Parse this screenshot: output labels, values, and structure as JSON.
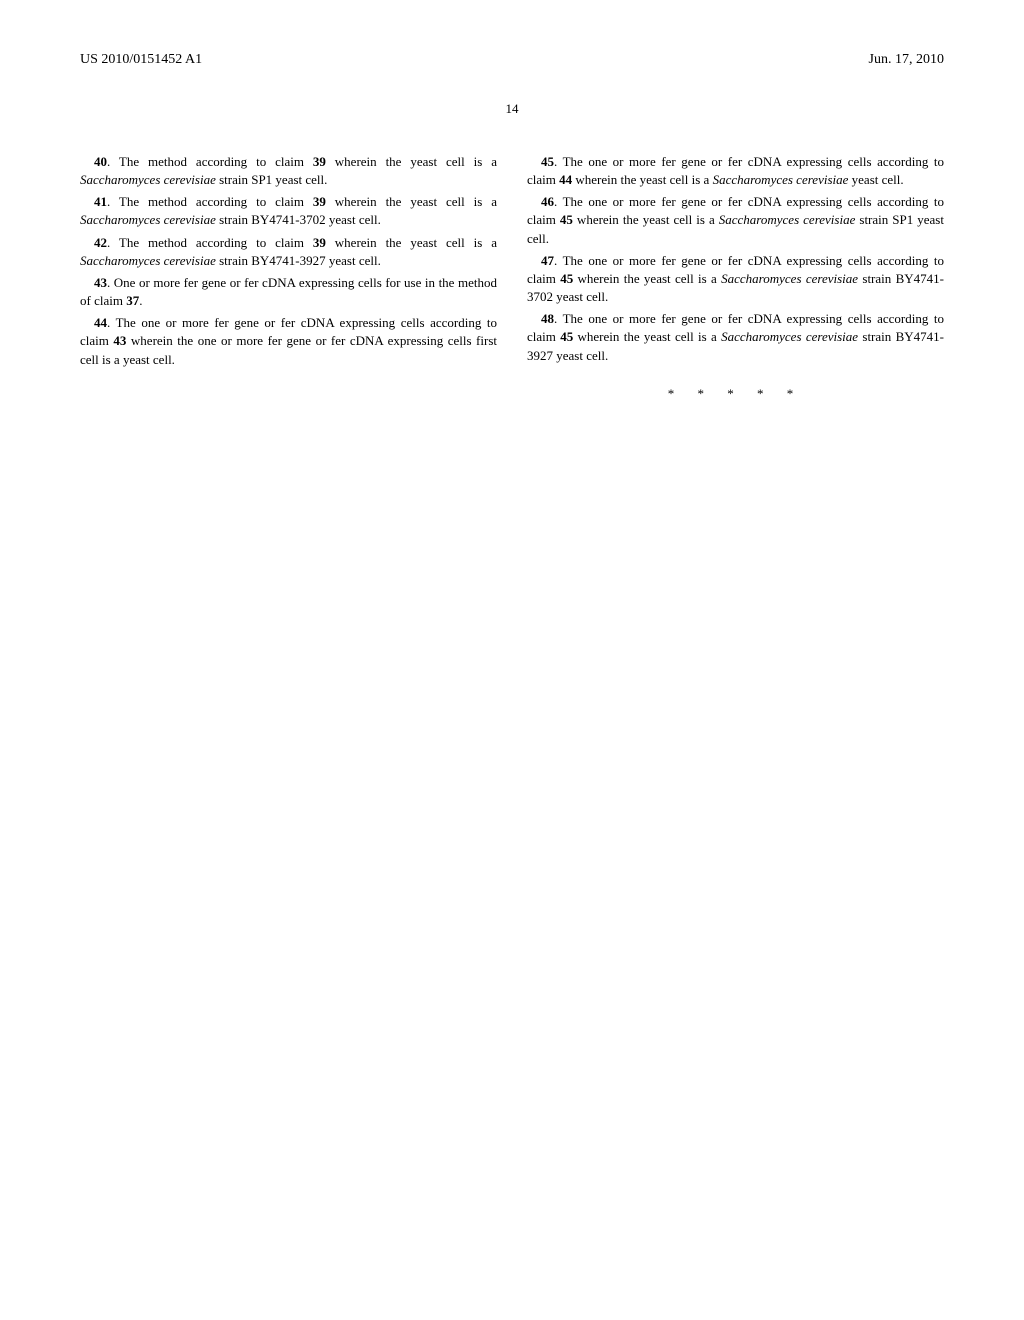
{
  "header": {
    "publication_number": "US 2010/0151452 A1",
    "date": "Jun. 17, 2010"
  },
  "page_number": "14",
  "claims": [
    {
      "num": "40",
      "text_before": ". The method according to claim ",
      "ref": "39",
      "text_after": " wherein the yeast cell is a ",
      "italic_text": "Saccharomyces cerevisiae",
      "text_end": " strain SP1 yeast cell."
    },
    {
      "num": "41",
      "text_before": ". The method according to claim ",
      "ref": "39",
      "text_after": " wherein the yeast cell is a ",
      "italic_text": "Saccharomyces cerevisiae",
      "text_end": " strain BY4741-3702 yeast cell."
    },
    {
      "num": "42",
      "text_before": ". The method according to claim ",
      "ref": "39",
      "text_after": " wherein the yeast cell is a ",
      "italic_text": "Saccharomyces cerevisiae",
      "text_end": " strain BY4741-3927 yeast cell."
    },
    {
      "num": "43",
      "text_before": ". One or more fer gene or fer cDNA expressing cells for use in the method of claim ",
      "ref": "37",
      "text_after": ".",
      "italic_text": "",
      "text_end": ""
    },
    {
      "num": "44",
      "text_before": ". The one or more fer gene or fer cDNA expressing cells according to claim ",
      "ref": "43",
      "text_after": " wherein the one or more fer gene or fer cDNA expressing cells first cell is a yeast cell.",
      "italic_text": "",
      "text_end": ""
    },
    {
      "num": "45",
      "text_before": ". The one or more fer gene or fer cDNA expressing cells according to claim ",
      "ref": "44",
      "text_after": " wherein the yeast cell is a ",
      "italic_text": "Saccharomyces cerevisiae",
      "text_end": " yeast cell."
    },
    {
      "num": "46",
      "text_before": ". The one or more fer gene or fer cDNA expressing cells according to claim ",
      "ref": "45",
      "text_after": " wherein the yeast cell is a ",
      "italic_text": "Saccharomyces cerevisiae",
      "text_end": " strain SP1 yeast cell."
    },
    {
      "num": "47",
      "text_before": ". The one or more fer gene or fer cDNA expressing cells according to claim ",
      "ref": "45",
      "text_after": " wherein the yeast cell is a ",
      "italic_text": "Saccharomyces cerevisiae",
      "text_end": " strain BY4741-3702 yeast cell."
    },
    {
      "num": "48",
      "text_before": ". The one or more fer gene or fer cDNA expressing cells according to claim ",
      "ref": "45",
      "text_after": " wherein the yeast cell is a ",
      "italic_text": "Saccharomyces cerevisiae",
      "text_end": " strain BY4741-3927 yeast cell."
    }
  ],
  "end_marks": "* * * * *"
}
